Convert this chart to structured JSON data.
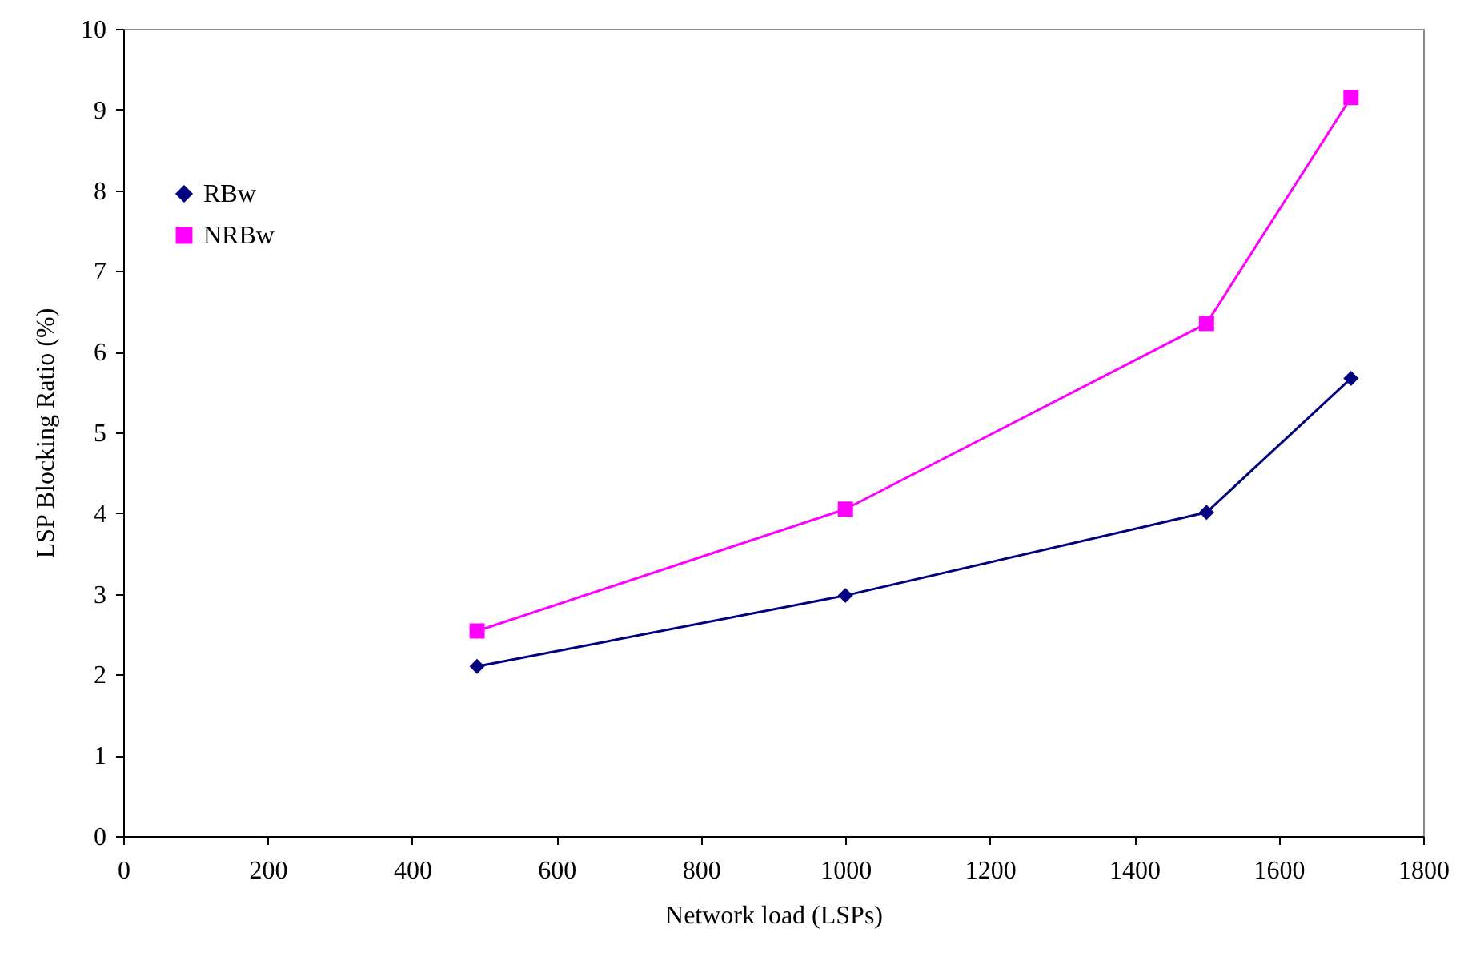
{
  "chart_data": {
    "type": "line",
    "xlabel": "Network load (LSPs)",
    "ylabel": "LSP Blocking Ratio (%)",
    "x": [
      490,
      1000,
      1500,
      1700
    ],
    "series": [
      {
        "name": "RBw",
        "color": "#000080",
        "marker": "diamond",
        "values": [
          2.1,
          2.98,
          4.01,
          5.67
        ]
      },
      {
        "name": "NRBw",
        "color": "#ff00ff",
        "marker": "square",
        "values": [
          2.54,
          4.05,
          6.35,
          9.15
        ]
      }
    ],
    "xlim": [
      0,
      1800
    ],
    "xticks": [
      0,
      200,
      400,
      600,
      800,
      1000,
      1200,
      1400,
      1600,
      1800
    ],
    "ylim": [
      0,
      10
    ],
    "yticks": [
      0,
      1,
      2,
      3,
      4,
      5,
      6,
      7,
      8,
      9,
      10
    ],
    "grid": false,
    "legend": "top left",
    "line_style": "solid"
  }
}
